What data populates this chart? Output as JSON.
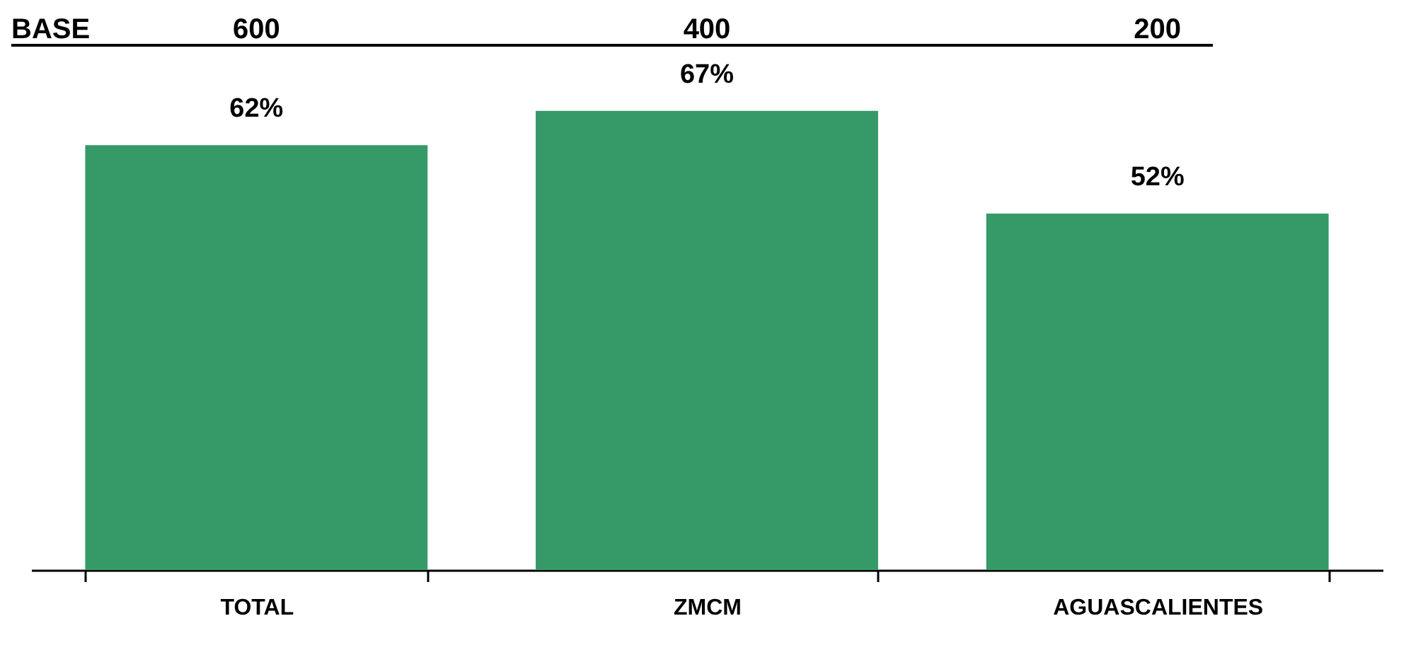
{
  "chart_data": {
    "type": "bar",
    "categories": [
      "TOTAL",
      "ZMCM",
      "AGUASCALIENTES"
    ],
    "values": [
      62,
      67,
      52
    ],
    "color": "#359a68",
    "value_labels": [
      "62%",
      "67%",
      "52%"
    ],
    "annotations": [
      "BASE",
      "600",
      "400",
      "200"
    ],
    "tick_labels": "x"
  }
}
